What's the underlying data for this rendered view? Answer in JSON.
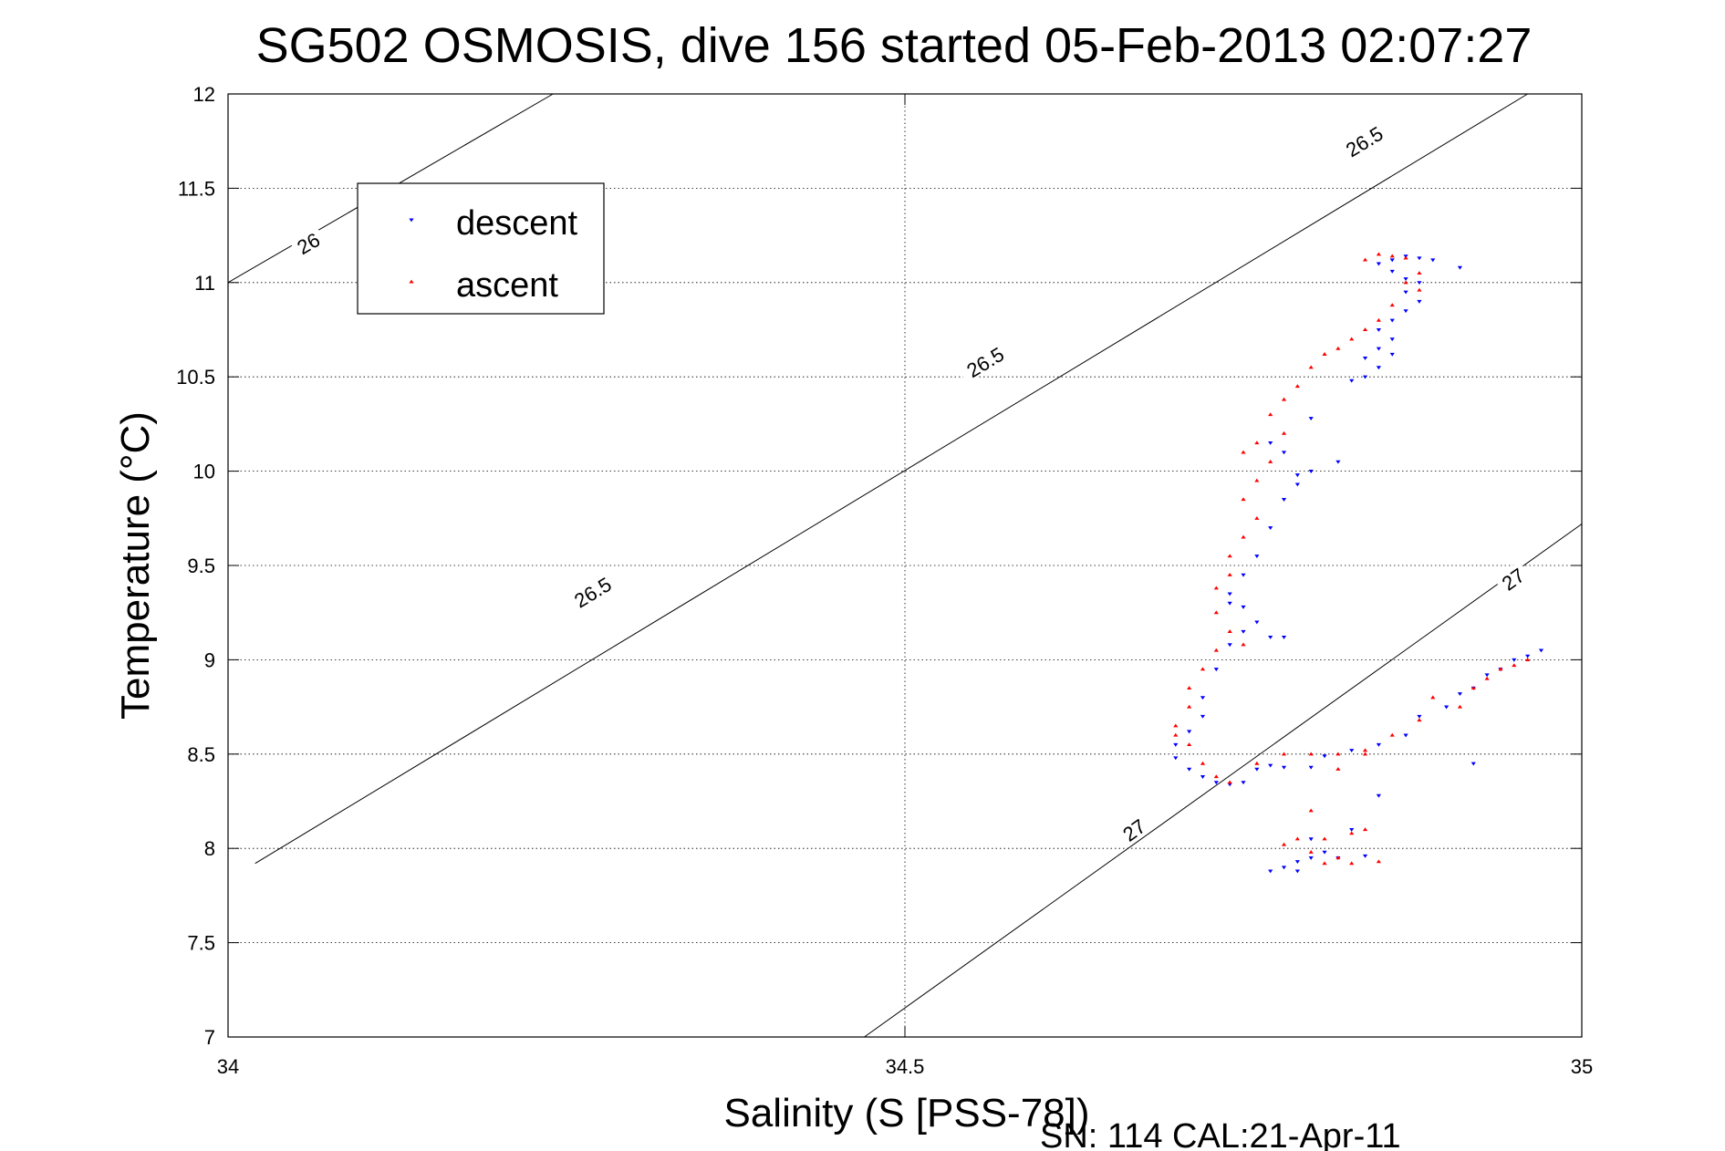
{
  "chart_data": {
    "type": "scatter",
    "title": "SG502 OSMOSIS, dive 156 started 05-Feb-2013 02:07:27",
    "xlabel": "Salinity (S [PSS-78])",
    "ylabel": "Temperature (°C)",
    "footer": "SN: 114  CAL:21-Apr-11",
    "xlim": [
      34,
      35
    ],
    "ylim": [
      7,
      12
    ],
    "xticks": [
      34,
      34.5,
      35
    ],
    "xtick_labels": [
      "34",
      "34.5",
      "35"
    ],
    "yticks": [
      7,
      7.5,
      8,
      8.5,
      9,
      9.5,
      10,
      10.5,
      11,
      11.5,
      12
    ],
    "ytick_labels": [
      "7",
      "7.5",
      "8",
      "8.5",
      "9",
      "9.5",
      "10",
      "10.5",
      "11",
      "11.5",
      "12"
    ],
    "grid": true,
    "legend_position": "top-left",
    "density_contours": [
      {
        "level": "26",
        "points": [
          [
            34.0,
            11.0
          ],
          [
            34.24,
            12.0
          ]
        ],
        "labels": [
          {
            "text": "26",
            "s": 34.06,
            "t": 11.2
          }
        ]
      },
      {
        "level": "26.5",
        "points": [
          [
            34.02,
            7.92
          ],
          [
            34.96,
            12.0
          ]
        ],
        "labels": [
          {
            "text": "26.5",
            "s": 34.27,
            "t": 9.35
          },
          {
            "text": "26.5",
            "s": 34.56,
            "t": 10.57
          },
          {
            "text": "26.5",
            "s": 34.84,
            "t": 11.74
          }
        ]
      },
      {
        "level": "27",
        "points": [
          [
            34.47,
            7.0
          ],
          [
            35.0,
            9.72
          ]
        ],
        "labels": [
          {
            "text": "27",
            "s": 34.67,
            "t": 8.09
          },
          {
            "text": "27",
            "s": 34.95,
            "t": 9.42
          }
        ]
      }
    ],
    "series": [
      {
        "name": "descent",
        "color": "#0000ff",
        "marker": "triangle-down",
        "points": [
          [
            34.86,
            11.12
          ],
          [
            34.87,
            11.14
          ],
          [
            34.88,
            11.13
          ],
          [
            34.89,
            11.12
          ],
          [
            34.91,
            11.08
          ],
          [
            34.85,
            11.1
          ],
          [
            34.86,
            11.06
          ],
          [
            34.87,
            11.02
          ],
          [
            34.88,
            11.0
          ],
          [
            34.87,
            10.95
          ],
          [
            34.88,
            10.9
          ],
          [
            34.87,
            10.85
          ],
          [
            34.86,
            10.8
          ],
          [
            34.85,
            10.75
          ],
          [
            34.86,
            10.7
          ],
          [
            34.85,
            10.65
          ],
          [
            34.84,
            10.6
          ],
          [
            34.86,
            10.62
          ],
          [
            34.85,
            10.55
          ],
          [
            34.84,
            10.5
          ],
          [
            34.83,
            10.48
          ],
          [
            34.82,
            10.05
          ],
          [
            34.8,
            10.0
          ],
          [
            34.79,
            9.98
          ],
          [
            34.79,
            9.93
          ],
          [
            34.78,
            10.1
          ],
          [
            34.77,
            10.15
          ],
          [
            34.8,
            10.28
          ],
          [
            34.78,
            9.85
          ],
          [
            34.77,
            9.7
          ],
          [
            34.76,
            9.55
          ],
          [
            34.75,
            9.45
          ],
          [
            34.74,
            9.35
          ],
          [
            34.74,
            9.3
          ],
          [
            34.75,
            9.28
          ],
          [
            34.76,
            9.2
          ],
          [
            34.75,
            9.15
          ],
          [
            34.77,
            9.12
          ],
          [
            34.78,
            9.12
          ],
          [
            34.74,
            9.08
          ],
          [
            34.73,
            8.95
          ],
          [
            34.72,
            8.8
          ],
          [
            34.72,
            8.7
          ],
          [
            34.71,
            8.62
          ],
          [
            34.7,
            8.55
          ],
          [
            34.7,
            8.48
          ],
          [
            34.71,
            8.42
          ],
          [
            34.72,
            8.38
          ],
          [
            34.73,
            8.35
          ],
          [
            34.74,
            8.34
          ],
          [
            34.75,
            8.35
          ],
          [
            34.76,
            8.42
          ],
          [
            34.77,
            8.44
          ],
          [
            34.78,
            8.43
          ],
          [
            34.8,
            8.43
          ],
          [
            34.81,
            8.49
          ],
          [
            34.83,
            8.52
          ],
          [
            34.85,
            8.55
          ],
          [
            34.87,
            8.6
          ],
          [
            34.9,
            8.75
          ],
          [
            34.92,
            8.85
          ],
          [
            34.94,
            8.95
          ],
          [
            34.96,
            9.02
          ],
          [
            34.97,
            9.05
          ],
          [
            34.95,
            9.0
          ],
          [
            34.93,
            8.92
          ],
          [
            34.91,
            8.82
          ],
          [
            34.88,
            8.7
          ],
          [
            34.92,
            8.45
          ],
          [
            34.85,
            8.28
          ],
          [
            34.83,
            8.1
          ],
          [
            34.8,
            8.05
          ],
          [
            34.81,
            7.98
          ],
          [
            34.79,
            7.93
          ],
          [
            34.78,
            7.9
          ],
          [
            34.77,
            7.88
          ],
          [
            34.79,
            7.88
          ],
          [
            34.8,
            7.95
          ],
          [
            34.82,
            7.95
          ],
          [
            34.84,
            7.96
          ]
        ]
      },
      {
        "name": "ascent",
        "color": "#ff0000",
        "marker": "triangle-up",
        "points": [
          [
            34.85,
            11.15
          ],
          [
            34.86,
            11.14
          ],
          [
            34.87,
            11.13
          ],
          [
            34.84,
            11.12
          ],
          [
            34.88,
            11.05
          ],
          [
            34.87,
            11.0
          ],
          [
            34.88,
            10.96
          ],
          [
            34.86,
            10.88
          ],
          [
            34.85,
            10.8
          ],
          [
            34.84,
            10.75
          ],
          [
            34.83,
            10.7
          ],
          [
            34.82,
            10.65
          ],
          [
            34.81,
            10.62
          ],
          [
            34.8,
            10.55
          ],
          [
            34.79,
            10.45
          ],
          [
            34.78,
            10.38
          ],
          [
            34.77,
            10.3
          ],
          [
            34.78,
            10.2
          ],
          [
            34.76,
            10.15
          ],
          [
            34.77,
            10.05
          ],
          [
            34.75,
            10.1
          ],
          [
            34.76,
            9.95
          ],
          [
            34.75,
            9.85
          ],
          [
            34.76,
            9.75
          ],
          [
            34.75,
            9.65
          ],
          [
            34.74,
            9.55
          ],
          [
            34.74,
            9.45
          ],
          [
            34.73,
            9.38
          ],
          [
            34.73,
            9.25
          ],
          [
            34.74,
            9.15
          ],
          [
            34.75,
            9.08
          ],
          [
            34.73,
            9.05
          ],
          [
            34.72,
            8.95
          ],
          [
            34.71,
            8.85
          ],
          [
            34.71,
            8.75
          ],
          [
            34.7,
            8.65
          ],
          [
            34.7,
            8.6
          ],
          [
            34.71,
            8.55
          ],
          [
            34.72,
            8.45
          ],
          [
            34.73,
            8.38
          ],
          [
            34.74,
            8.35
          ],
          [
            34.76,
            8.45
          ],
          [
            34.78,
            8.5
          ],
          [
            34.8,
            8.5
          ],
          [
            34.82,
            8.5
          ],
          [
            34.84,
            8.52
          ],
          [
            34.86,
            8.6
          ],
          [
            34.88,
            8.68
          ],
          [
            34.91,
            8.75
          ],
          [
            34.93,
            8.9
          ],
          [
            34.94,
            8.95
          ],
          [
            34.96,
            9.0
          ],
          [
            34.95,
            8.97
          ],
          [
            34.92,
            8.85
          ],
          [
            34.89,
            8.8
          ],
          [
            34.84,
            8.5
          ],
          [
            34.82,
            8.42
          ],
          [
            34.8,
            8.2
          ],
          [
            34.79,
            8.05
          ],
          [
            34.78,
            8.02
          ],
          [
            34.81,
            8.05
          ],
          [
            34.83,
            8.08
          ],
          [
            34.84,
            8.1
          ],
          [
            34.82,
            7.95
          ],
          [
            34.83,
            7.92
          ],
          [
            34.85,
            7.93
          ],
          [
            34.8,
            7.98
          ],
          [
            34.81,
            7.92
          ]
        ]
      }
    ]
  }
}
